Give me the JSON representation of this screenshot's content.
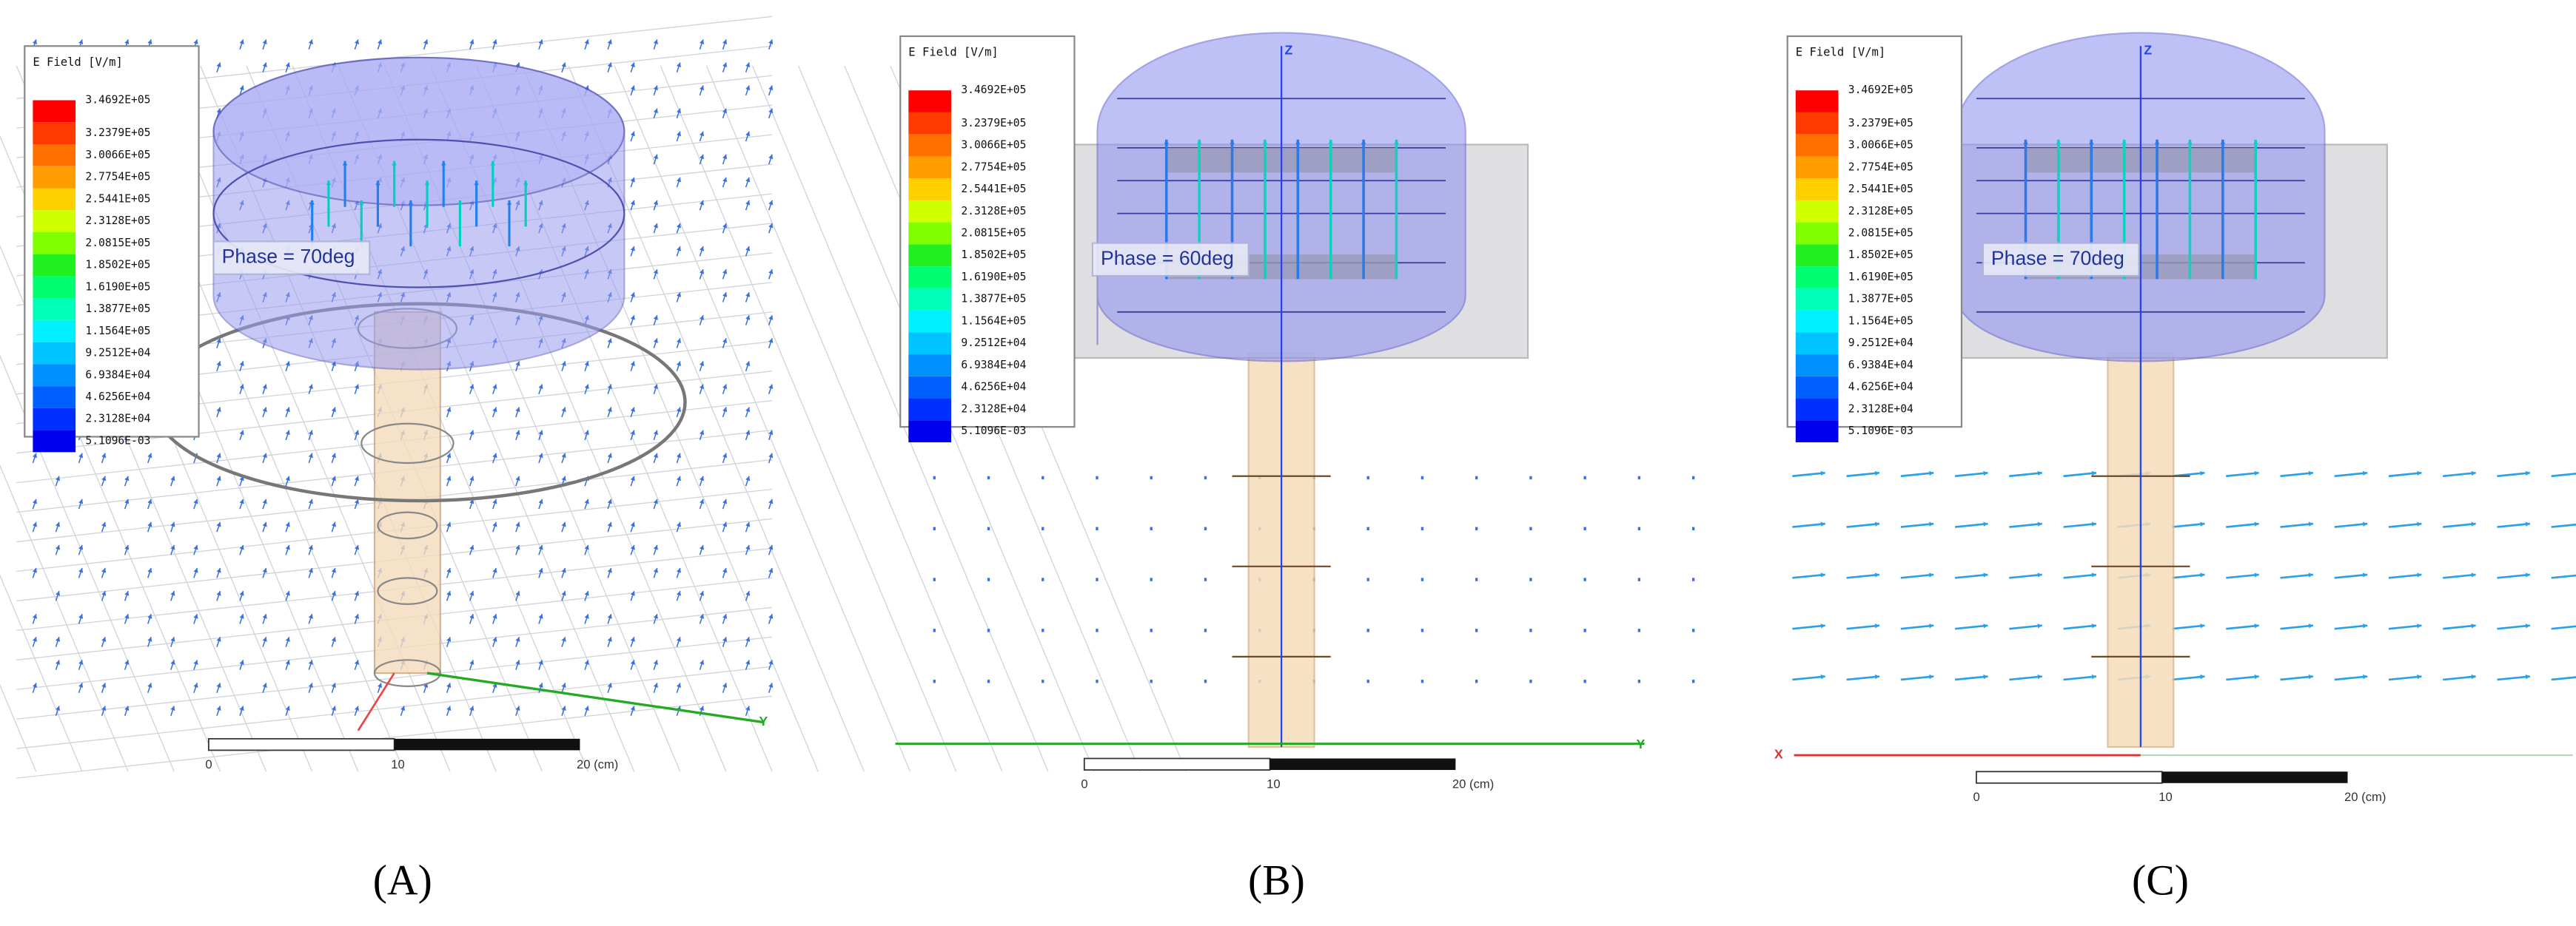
{
  "panels": [
    {
      "label": "(A)",
      "legend": {
        "title": "E Field [V/m]",
        "values": [
          "3.4692E+05",
          "3.2379E+05",
          "3.0066E+05",
          "2.7754E+05",
          "2.5441E+05",
          "2.3128E+05",
          "2.0815E+05",
          "1.8502E+05",
          "1.6190E+05",
          "1.3877E+05",
          "1.1564E+05",
          "9.2512E+04",
          "6.9384E+04",
          "4.6256E+04",
          "2.3128E+04",
          "5.1096E-03"
        ]
      },
      "phase": "Phase = 70deg",
      "scale": [
        "0",
        "10",
        "20 (cm)"
      ],
      "axes": [
        "Y"
      ]
    },
    {
      "label": "(B)",
      "legend": {
        "title": "E Field [V/m]",
        "values": [
          "3.4692E+05",
          "3.2379E+05",
          "3.0066E+05",
          "2.7754E+05",
          "2.5441E+05",
          "2.3128E+05",
          "2.0815E+05",
          "1.8502E+05",
          "1.6190E+05",
          "1.3877E+05",
          "1.1564E+05",
          "9.2512E+04",
          "6.9384E+04",
          "4.6256E+04",
          "2.3128E+04",
          "5.1096E-03"
        ]
      },
      "phase": "Phase = 60deg",
      "scale": [
        "0",
        "10",
        "20 (cm)"
      ],
      "axes": [
        "Z",
        "Y"
      ]
    },
    {
      "label": "(C)",
      "legend": {
        "title": "E Field [V/m]",
        "values": [
          "3.4692E+05",
          "3.2379E+05",
          "3.0066E+05",
          "2.7754E+05",
          "2.5441E+05",
          "2.3128E+05",
          "2.0815E+05",
          "1.8502E+05",
          "1.6190E+05",
          "1.3877E+05",
          "1.1564E+05",
          "9.2512E+04",
          "6.9384E+04",
          "4.6256E+04",
          "2.3128E+04",
          "5.1096E-03"
        ]
      },
      "phase": "Phase = 70deg",
      "scale": [
        "0",
        "10",
        "20 (cm)"
      ],
      "axes": [
        "Z",
        "X"
      ]
    }
  ]
}
